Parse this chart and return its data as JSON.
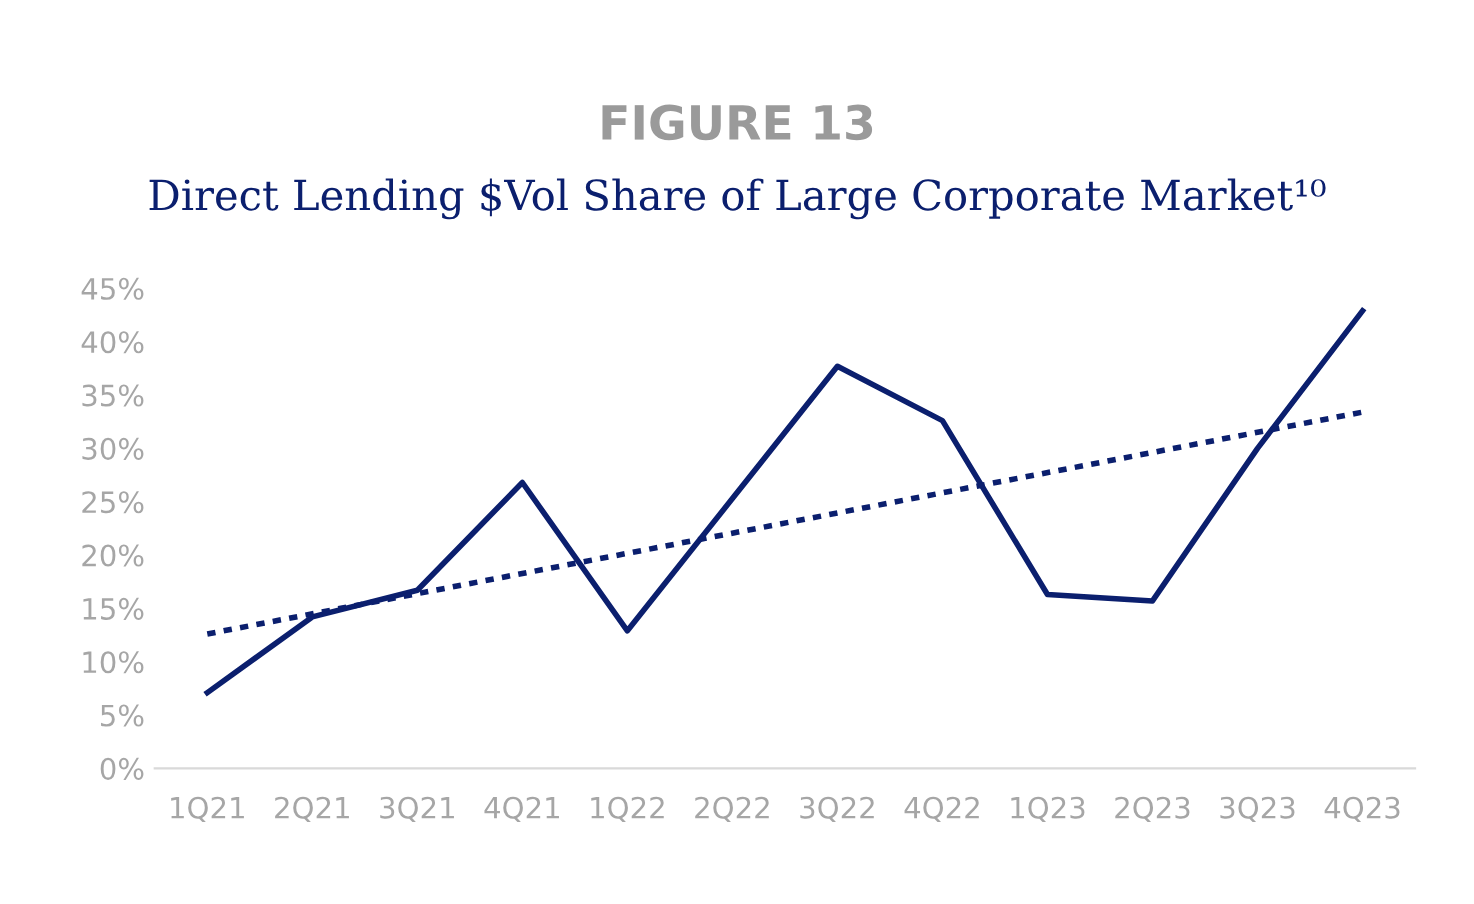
{
  "chart_data": {
    "type": "line",
    "title": "FIGURE 13",
    "subtitle": "Direct Lending $Vol Share of Large Corporate Market¹⁰",
    "categories": [
      "1Q21",
      "2Q21",
      "3Q21",
      "4Q21",
      "1Q22",
      "2Q22",
      "3Q22",
      "4Q22",
      "1Q23",
      "2Q23",
      "3Q23",
      "4Q23"
    ],
    "series": [
      {
        "color": "#0b1f6e",
        "line_style": "solid",
        "values": [
          7.1,
          14.2,
          16.7,
          26.8,
          12.9,
          25.3,
          37.7,
          32.6,
          16.3,
          15.7,
          30,
          42.9
        ]
      },
      {
        "color": "#0b1f6e",
        "line_style": "dotted",
        "x": [
          "1Q21",
          "4Q23"
        ],
        "values": [
          12.6,
          33.4
        ]
      }
    ],
    "ylim": [
      0,
      45
    ],
    "yticks": [
      {
        "value": 0,
        "label": "0%"
      },
      {
        "value": 5,
        "label": "5%"
      },
      {
        "value": 10,
        "label": "10%"
      },
      {
        "value": 15,
        "label": "15%"
      },
      {
        "value": 20,
        "label": "20%"
      },
      {
        "value": 25,
        "label": "25%"
      },
      {
        "value": 30,
        "label": "30%"
      },
      {
        "value": 35,
        "label": "35%"
      },
      {
        "value": 40,
        "label": "40%"
      },
      {
        "value": 45,
        "label": "45%"
      }
    ],
    "marker": "none"
  }
}
